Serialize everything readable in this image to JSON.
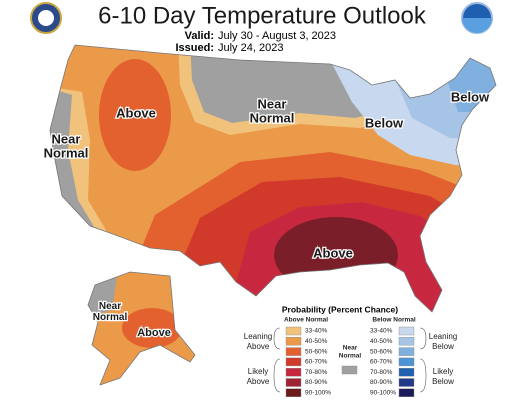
{
  "header": {
    "title": "6-10 Day Temperature Outlook",
    "valid_label": "Valid:",
    "valid": "July 30 - August 3, 2023",
    "issued_label": "Issued:",
    "issued": "July 24, 2023"
  },
  "map": {
    "labels": [
      {
        "lines": [
          "Above"
        ]
      },
      {
        "lines": [
          "Near",
          "Normal"
        ]
      },
      {
        "lines": [
          "Near",
          "Normal"
        ]
      },
      {
        "lines": [
          "Below"
        ]
      },
      {
        "lines": [
          "Below"
        ]
      },
      {
        "lines": [
          "Above"
        ]
      },
      {
        "lines": [
          "Near",
          "Normal"
        ]
      },
      {
        "lines": [
          "Above"
        ]
      }
    ]
  },
  "legend": {
    "title": "Probability (Percent Chance)",
    "above_title": "Above Normal",
    "below_title": "Below Normal",
    "near_title": [
      "Near",
      "Normal"
    ],
    "near_color": "#a0a0a0",
    "percents": [
      "33-40%",
      "40-50%",
      "50-60%",
      "60-70%",
      "70-80%",
      "80-90%",
      "90-100%"
    ],
    "above_colors": [
      "#f0c27b",
      "#eb9a4a",
      "#e3612e",
      "#d13a2b",
      "#c8283f",
      "#9e2434",
      "#6b1a1a"
    ],
    "below_colors": [
      "#c8d8ef",
      "#a6c4e6",
      "#7fb0e0",
      "#4d93d5",
      "#2060b0",
      "#203a8a",
      "#1c1c5a"
    ],
    "leaning_above": [
      "Leaning",
      "Above"
    ],
    "likely_above": [
      "Likely",
      "Above"
    ],
    "leaning_below": [
      "Leaning",
      "Below"
    ],
    "likely_below": [
      "Likely",
      "Below"
    ]
  }
}
